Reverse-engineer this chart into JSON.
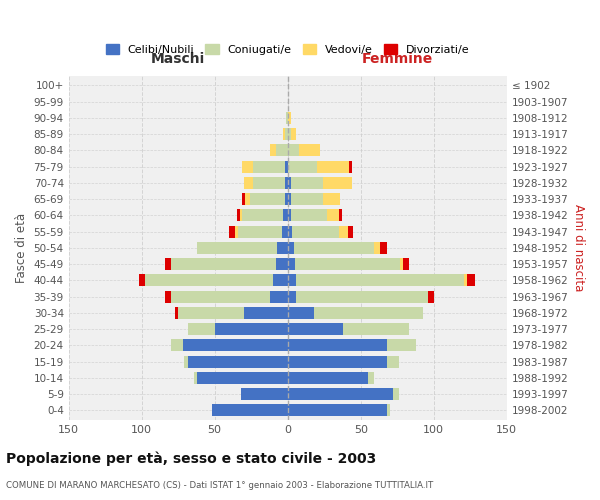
{
  "age_groups": [
    "0-4",
    "5-9",
    "10-14",
    "15-19",
    "20-24",
    "25-29",
    "30-34",
    "35-39",
    "40-44",
    "45-49",
    "50-54",
    "55-59",
    "60-64",
    "65-69",
    "70-74",
    "75-79",
    "80-84",
    "85-89",
    "90-94",
    "95-99",
    "100+"
  ],
  "birth_years": [
    "1998-2002",
    "1993-1997",
    "1988-1992",
    "1983-1987",
    "1978-1982",
    "1973-1977",
    "1968-1972",
    "1963-1967",
    "1958-1962",
    "1953-1957",
    "1948-1952",
    "1943-1947",
    "1938-1942",
    "1933-1937",
    "1928-1932",
    "1923-1927",
    "1918-1922",
    "1913-1917",
    "1908-1912",
    "1903-1907",
    "≤ 1902"
  ],
  "males": {
    "celibe": [
      52,
      32,
      62,
      68,
      72,
      50,
      30,
      12,
      10,
      8,
      7,
      4,
      3,
      2,
      2,
      2,
      0,
      0,
      0,
      0,
      0
    ],
    "coniugato": [
      0,
      0,
      2,
      3,
      8,
      18,
      45,
      68,
      88,
      72,
      55,
      30,
      28,
      24,
      22,
      22,
      8,
      2,
      1,
      0,
      0
    ],
    "vedovo": [
      0,
      0,
      0,
      0,
      0,
      0,
      0,
      0,
      0,
      0,
      0,
      2,
      2,
      3,
      6,
      7,
      4,
      1,
      0,
      0,
      0
    ],
    "divorziato": [
      0,
      0,
      0,
      0,
      0,
      0,
      2,
      4,
      4,
      4,
      0,
      4,
      2,
      2,
      0,
      0,
      0,
      0,
      0,
      0,
      0
    ]
  },
  "females": {
    "nubile": [
      68,
      72,
      55,
      68,
      68,
      38,
      18,
      6,
      6,
      5,
      4,
      3,
      2,
      2,
      2,
      0,
      0,
      0,
      0,
      0,
      0
    ],
    "coniugata": [
      2,
      4,
      4,
      8,
      20,
      45,
      75,
      90,
      115,
      72,
      55,
      32,
      25,
      22,
      22,
      20,
      8,
      2,
      0,
      0,
      0
    ],
    "vedova": [
      0,
      0,
      0,
      0,
      0,
      0,
      0,
      0,
      2,
      2,
      4,
      6,
      8,
      12,
      20,
      22,
      14,
      4,
      2,
      0,
      0
    ],
    "divorziata": [
      0,
      0,
      0,
      0,
      0,
      0,
      0,
      4,
      5,
      4,
      5,
      4,
      2,
      0,
      0,
      2,
      0,
      0,
      0,
      0,
      0
    ]
  },
  "colors": {
    "celibe": "#4472C4",
    "coniugato": "#c8d9a8",
    "vedovo": "#FFD966",
    "divorziato": "#DD0000"
  },
  "title": "Popolazione per età, sesso e stato civile - 2003",
  "subtitle": "COMUNE DI MARANO MARCHESATO (CS) - Dati ISTAT 1° gennaio 2003 - Elaborazione TUTTITALIA.IT",
  "xlabel_left": "Maschi",
  "xlabel_right": "Femmine",
  "ylabel_left": "Fasce di età",
  "ylabel_right": "Anni di nascita",
  "xlim": 150,
  "bg_color": "#f0f0f0",
  "grid_color": "#cccccc",
  "legend_labels": [
    "Celibi/Nubili",
    "Coniugati/e",
    "Vedovi/e",
    "Divorziati/e"
  ]
}
